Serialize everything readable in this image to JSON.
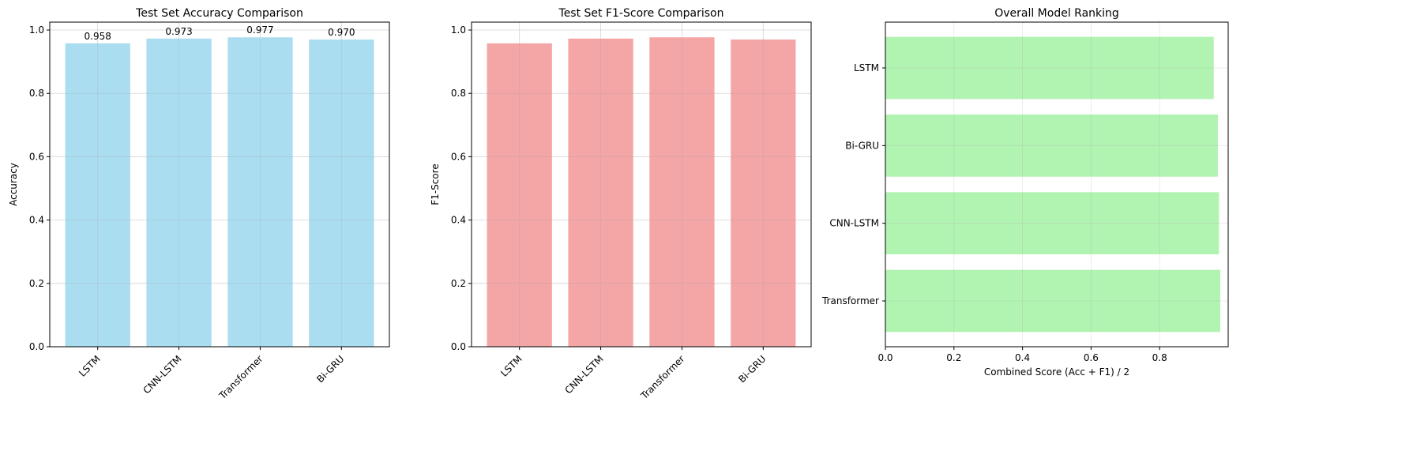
{
  "chart_data": [
    {
      "type": "bar",
      "orientation": "vertical",
      "title": "Test Set Accuracy Comparison",
      "xlabel": "",
      "ylabel": "Accuracy",
      "categories": [
        "LSTM",
        "CNN-LSTM",
        "Transformer",
        "Bi-GRU"
      ],
      "values": [
        0.958,
        0.973,
        0.977,
        0.97
      ],
      "data_labels": [
        "0.958",
        "0.973",
        "0.977",
        "0.970"
      ],
      "ylim": [
        0,
        1.025
      ],
      "yticks": [
        0.0,
        0.2,
        0.4,
        0.6,
        0.8,
        1.0
      ],
      "ytick_labels": [
        "0.0",
        "0.2",
        "0.4",
        "0.6",
        "0.8",
        "1.0"
      ],
      "grid": true,
      "color": "#87ceeb"
    },
    {
      "type": "bar",
      "orientation": "vertical",
      "title": "Test Set F1-Score Comparison",
      "xlabel": "",
      "ylabel": "F1-Score",
      "categories": [
        "LSTM",
        "CNN-LSTM",
        "Transformer",
        "Bi-GRU"
      ],
      "values": [
        0.958,
        0.973,
        0.977,
        0.97
      ],
      "ylim": [
        0,
        1.025
      ],
      "yticks": [
        0.0,
        0.2,
        0.4,
        0.6,
        0.8,
        1.0
      ],
      "ytick_labels": [
        "0.0",
        "0.2",
        "0.4",
        "0.6",
        "0.8",
        "1.0"
      ],
      "grid": true,
      "color": "#f08080"
    },
    {
      "type": "bar",
      "orientation": "horizontal",
      "title": "Overall Model Ranking",
      "xlabel": "Combined Score (Acc + F1) / 2",
      "ylabel": "",
      "categories": [
        "Transformer",
        "CNN-LSTM",
        "Bi-GRU",
        "LSTM"
      ],
      "values": [
        0.977,
        0.973,
        0.97,
        0.958
      ],
      "xlim": [
        0,
        1.0
      ],
      "xticks": [
        0.0,
        0.2,
        0.4,
        0.6,
        0.8
      ],
      "xtick_labels": [
        "0.0",
        "0.2",
        "0.4",
        "0.6",
        "0.8"
      ],
      "grid": true,
      "color": "#90ee90"
    }
  ]
}
